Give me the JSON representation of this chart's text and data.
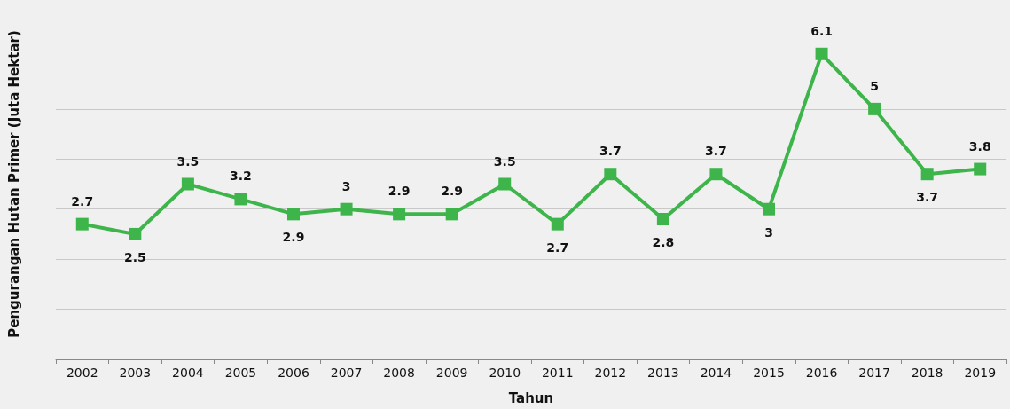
{
  "chart_data": {
    "type": "line",
    "xlabel": "Tahun",
    "ylabel": "Pengurangan Hutan Primer (Juta Hektar)",
    "categories": [
      "2002",
      "2003",
      "2004",
      "2005",
      "2006",
      "2007",
      "2008",
      "2009",
      "2010",
      "2011",
      "2012",
      "2013",
      "2014",
      "2015",
      "2016",
      "2017",
      "2018",
      "2019"
    ],
    "series": [
      {
        "color": "#3db54a",
        "values": [
          2.7,
          2.5,
          3.5,
          3.2,
          2.9,
          3,
          2.9,
          2.9,
          3.5,
          2.7,
          3.7,
          2.8,
          3.7,
          3,
          6.1,
          5,
          3.7,
          3.8
        ]
      }
    ],
    "yticks": [
      {
        "value": 0,
        "label": null
      },
      {
        "value": 1,
        "label": null
      },
      {
        "value": 2,
        "label": null
      },
      {
        "value": 3,
        "label": null
      },
      {
        "value": 4,
        "label": null
      },
      {
        "value": 5,
        "label": null
      },
      {
        "value": 6,
        "label": null
      }
    ],
    "grid": "y",
    "tick_labels": "x",
    "marker": "square",
    "line_style": "solid",
    "data_labels": true
  }
}
